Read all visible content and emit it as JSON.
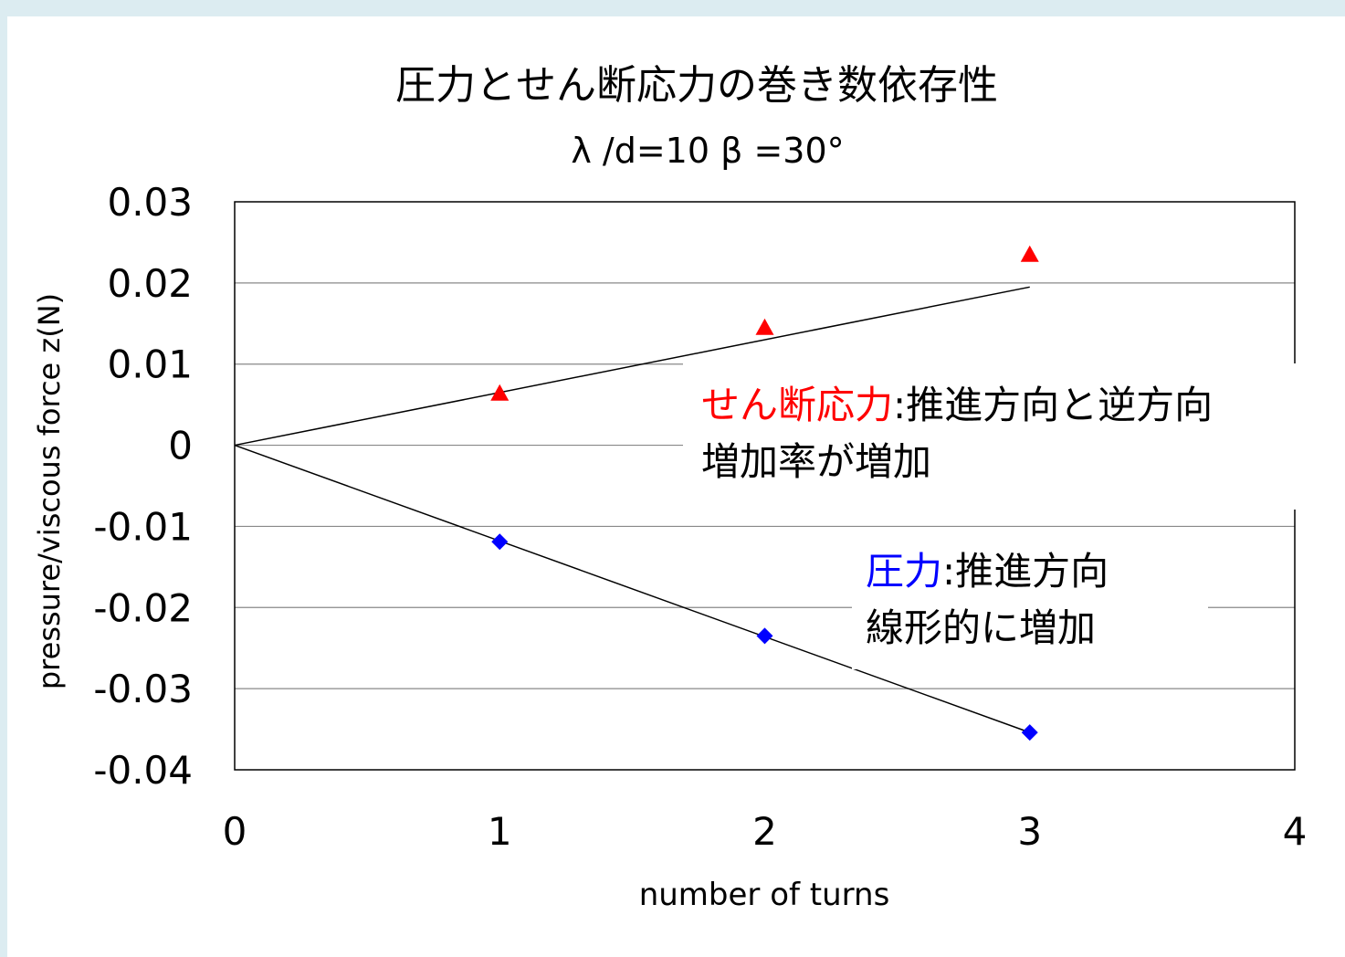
{
  "chart_data": {
    "type": "scatter",
    "title": "圧力とせん断応力の巻き数依存性",
    "subtitle": "λ /d=10 β =30°",
    "xlabel": "number of turns",
    "ylabel": "pressure/viscous force z(N)",
    "xlim": [
      0,
      4
    ],
    "ylim": [
      -0.04,
      0.03
    ],
    "x_ticks": [
      "0",
      "1",
      "2",
      "3",
      "4"
    ],
    "y_ticks": [
      "0.03",
      "0.02",
      "0.01",
      "0",
      "-0.01",
      "-0.02",
      "-0.03",
      "-0.04"
    ],
    "grid": "horizontal",
    "series": [
      {
        "name": "せん断応力",
        "marker": "triangle",
        "color": "#ff0000",
        "x": [
          1,
          2,
          3
        ],
        "y": [
          0.0064,
          0.0145,
          0.0235
        ],
        "trendline": {
          "from": [
            0,
            0
          ],
          "to": [
            3,
            0.0195
          ]
        }
      },
      {
        "name": "圧力",
        "marker": "diamond",
        "color": "#0000ff",
        "x": [
          1,
          2,
          3
        ],
        "y": [
          -0.0119,
          -0.0235,
          -0.0354
        ],
        "trendline": {
          "from": [
            0,
            0
          ],
          "to": [
            3,
            -0.0354
          ]
        }
      }
    ],
    "annotations": [
      {
        "colored": "せん断応力",
        "color": "#ff0000",
        "line1_rest": ":推進方向と逆方向",
        "line2": "増加率が増加"
      },
      {
        "colored": "圧力",
        "color": "#0000ff",
        "line1_rest": ":推進方向",
        "line2": "線形的に増加"
      }
    ]
  }
}
